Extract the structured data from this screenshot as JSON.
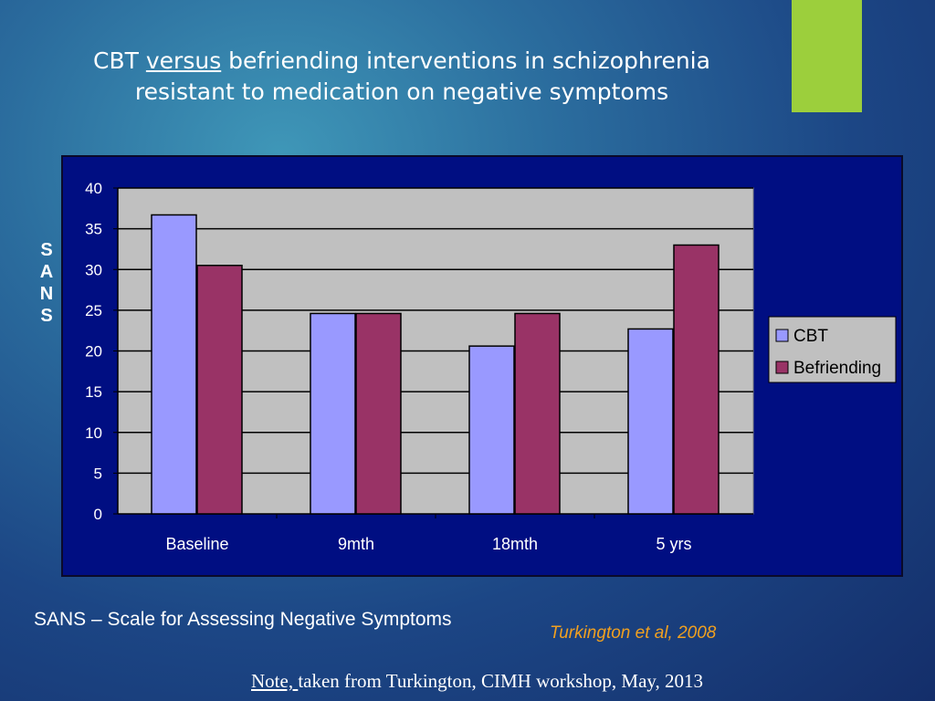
{
  "slide": {
    "title_part1": "CBT ",
    "title_underlined": "versus",
    "title_part2": " befriending interventions in schizophrenia",
    "title_line2": "resistant to medication  on negative symptoms",
    "sans_definition": "SANS – Scale for Assessing Negative Symptoms",
    "citation": "Turkington et al, 2008",
    "note_label": "Note, ",
    "note_text": "taken from Turkington, CIMH workshop, May, 2013",
    "accent_color": "#9ccf3c"
  },
  "chart_data": {
    "type": "bar",
    "title": "",
    "ylabel": "SANS",
    "xlabel": "",
    "categories": [
      "Baseline",
      "9mth",
      "18mth",
      "5 yrs"
    ],
    "series": [
      {
        "name": "CBT",
        "values": [
          36.7,
          24.6,
          20.6,
          22.7
        ],
        "color": "#9999ff"
      },
      {
        "name": "Befriending",
        "values": [
          30.5,
          24.6,
          24.6,
          33.0
        ],
        "color": "#993366"
      }
    ],
    "ylim": [
      0,
      40
    ],
    "yticks": [
      "0",
      "5",
      "10",
      "15",
      "20",
      "25",
      "30",
      "35",
      "40"
    ],
    "grid": true,
    "legend_position": "right",
    "plot_background": "#c0c0c0",
    "panel_background": "#000e82"
  }
}
